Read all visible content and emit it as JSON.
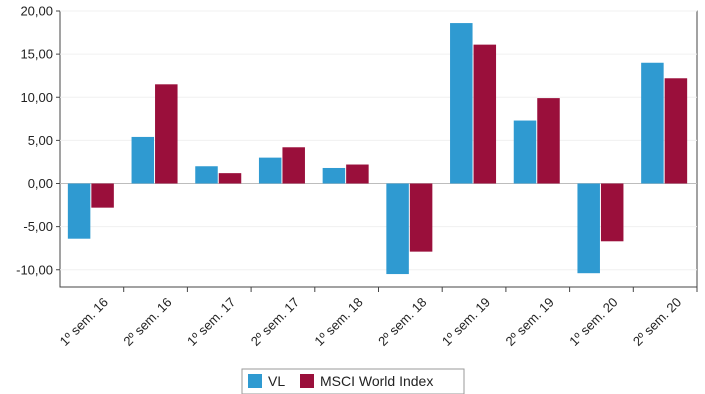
{
  "chart_data": {
    "type": "bar",
    "categories": [
      "1º sem. 16",
      "2º sem. 16",
      "1º sem. 17",
      "2º sem. 17",
      "1º sem. 18",
      "2º sem. 18",
      "1º sem. 19",
      "2º sem. 19",
      "1º sem. 20",
      "2º sem. 20"
    ],
    "series": [
      {
        "name": "VL",
        "color": "#2f9ad1",
        "values": [
          -6.4,
          5.4,
          2.0,
          3.0,
          1.8,
          -10.5,
          18.6,
          7.3,
          -10.4,
          14.0
        ]
      },
      {
        "name": "MSCI World Index",
        "color": "#9a0f3b",
        "values": [
          -2.8,
          11.5,
          1.2,
          4.2,
          2.2,
          -7.9,
          16.1,
          9.9,
          -6.7,
          12.2
        ]
      }
    ],
    "yticks": [
      "20,00",
      "15,00",
      "10,00",
      "5,00",
      "0,00",
      "-5,00",
      "-10,00"
    ],
    "ylim": [
      -12,
      20
    ],
    "grid": true,
    "legend_position": "bottom-center",
    "title": "",
    "xlabel": "",
    "ylabel": ""
  }
}
